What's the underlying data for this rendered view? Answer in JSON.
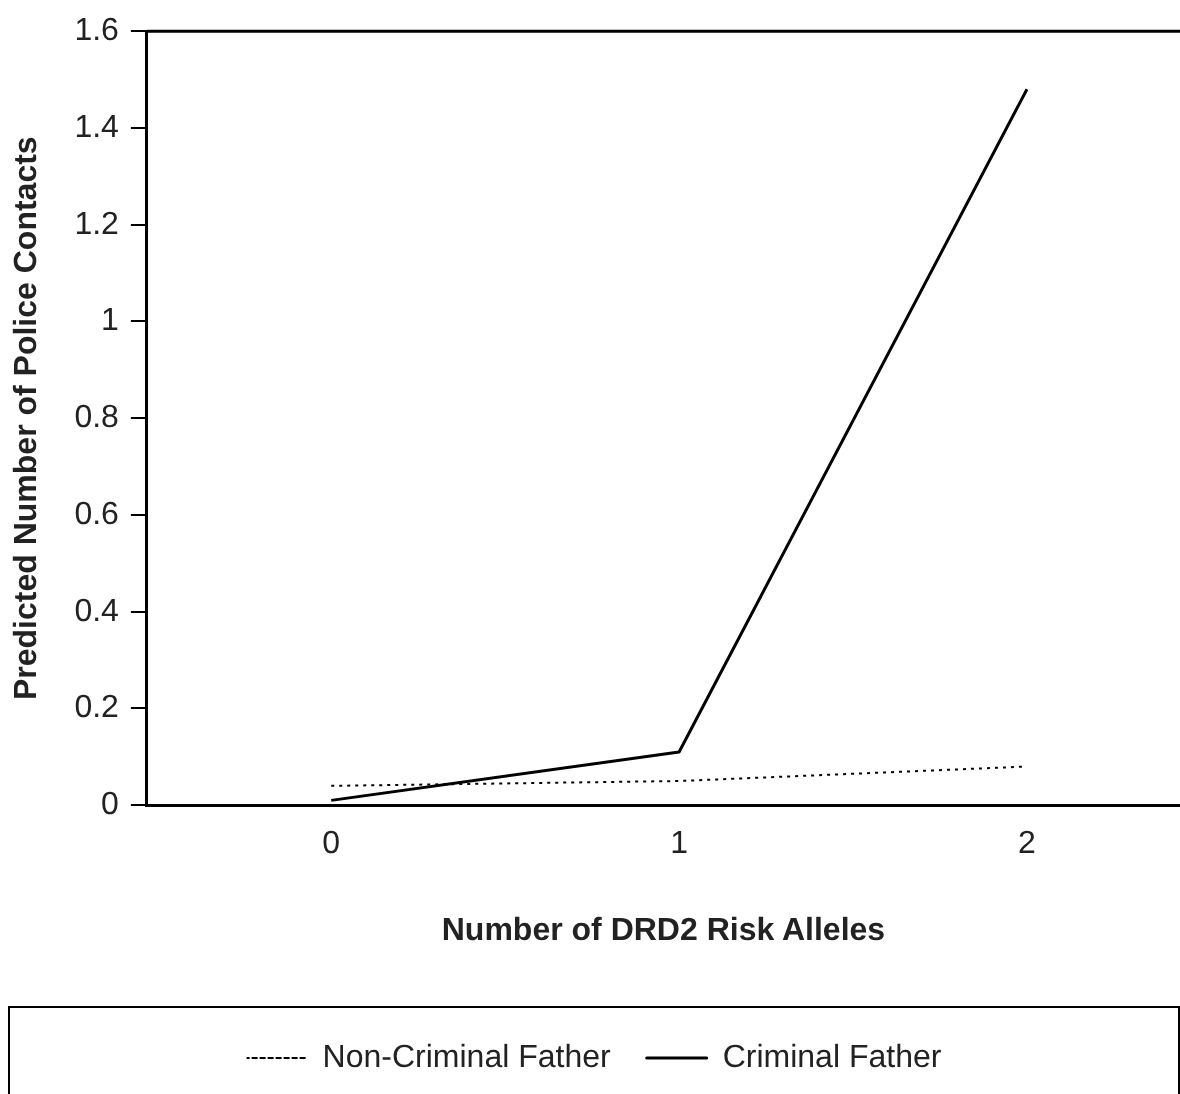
{
  "chart_data": {
    "type": "line",
    "xlabel": "Number of DRD2 Risk Alleles",
    "ylabel": "Predicted Number of Police Contacts",
    "x": [
      0,
      1,
      2
    ],
    "xlim": [
      -0.53,
      2.44
    ],
    "xticks": [
      0,
      1,
      2
    ],
    "ylim": [
      0,
      1.6
    ],
    "yticks": [
      0,
      0.2,
      0.4,
      0.6,
      0.8,
      1,
      1.2,
      1.4,
      1.6
    ],
    "grid": false,
    "legend": "bottom",
    "marker": "none",
    "series": [
      {
        "name": "Non-Criminal Father",
        "color": "#000000",
        "line_style": "dotted",
        "values": [
          0.04,
          0.05,
          0.08
        ]
      },
      {
        "name": "Criminal Father",
        "color": "#000000",
        "line_style": "solid",
        "values": [
          0.01,
          0.11,
          1.48
        ]
      }
    ]
  }
}
